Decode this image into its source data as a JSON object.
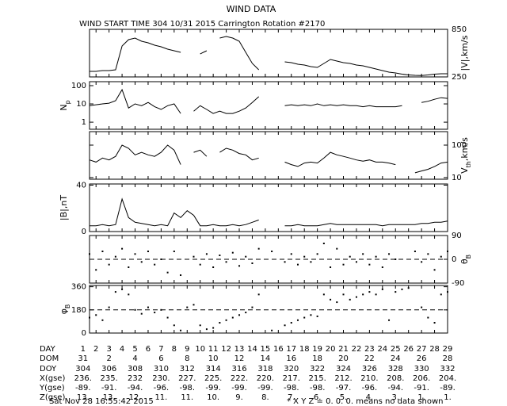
{
  "title": "WIND DATA",
  "chart_data": [
    {
      "type": "line",
      "title": "WIND START TIME 304 10/31 2015 Carrington Rotation #2170",
      "ylabel": [
        {
          "text": "|V|,km/s"
        }
      ],
      "ylabel_side": "right",
      "tick_side": "right",
      "log": false,
      "color": "#000000",
      "xlim": [
        1.5,
        29
      ],
      "ylim": [
        250,
        850
      ],
      "yticks": [
        250,
        850
      ],
      "x": [
        1.5,
        2,
        2.5,
        3,
        3.5,
        4,
        4.5,
        5,
        5.5,
        6,
        6.5,
        7,
        7.5,
        8,
        8.5,
        9,
        9.5,
        10,
        10.5,
        11,
        11.5,
        12,
        12.5,
        13,
        13.5,
        14,
        14.5,
        15,
        15.5,
        16,
        16.5,
        17,
        17.5,
        18,
        18.5,
        19,
        19.5,
        20,
        20.5,
        21,
        21.5,
        22,
        22.5,
        23,
        23.5,
        24,
        24.5,
        25,
        25.5,
        26,
        26.5,
        27,
        27.5,
        28,
        28.5,
        29
      ],
      "values": [
        320,
        320,
        330,
        330,
        340,
        640,
        720,
        740,
        700,
        680,
        650,
        630,
        600,
        580,
        560,
        null,
        null,
        540,
        580,
        null,
        740,
        760,
        740,
        700,
        560,
        420,
        340,
        null,
        380,
        null,
        440,
        430,
        410,
        400,
        380,
        370,
        420,
        470,
        450,
        430,
        420,
        400,
        390,
        370,
        350,
        330,
        310,
        300,
        285,
        275,
        270,
        268,
        275,
        285,
        290,
        290
      ]
    },
    {
      "type": "line",
      "ylabel": [
        {
          "text": "N"
        },
        {
          "text": "p",
          "sub": true
        }
      ],
      "ylabel_side": "left",
      "tick_side": "left",
      "log": true,
      "color": "#000000",
      "xlim": [
        1.5,
        29
      ],
      "ylim": [
        0.41,
        165
      ],
      "yticks": [
        1,
        10,
        100
      ],
      "x": [
        1.5,
        2,
        2.5,
        3,
        3.5,
        4,
        4.5,
        5,
        5.5,
        6,
        6.5,
        7,
        7.5,
        8,
        8.5,
        9,
        9.5,
        10,
        10.5,
        11,
        11.5,
        12,
        12.5,
        13,
        13.5,
        14,
        14.5,
        15,
        15.5,
        16,
        16.5,
        17,
        17.5,
        18,
        18.5,
        19,
        19.5,
        20,
        20.5,
        21,
        21.5,
        22,
        22.5,
        23,
        23.5,
        24,
        24.5,
        25,
        25.5,
        26,
        26.5,
        27,
        27.5,
        28,
        28.5,
        29
      ],
      "values": [
        8,
        9,
        10,
        11,
        15,
        60,
        6,
        10,
        8,
        12,
        7,
        5,
        8,
        10,
        3,
        null,
        4,
        8,
        5,
        3,
        4,
        3,
        3,
        4,
        6,
        12,
        25,
        null,
        6,
        null,
        8,
        9,
        8,
        9,
        8,
        10,
        8,
        9,
        8,
        9,
        8,
        8,
        7,
        8,
        7,
        7,
        7,
        7,
        8,
        null,
        null,
        12,
        14,
        18,
        22,
        20
      ]
    },
    {
      "type": "line",
      "ylabel": [
        {
          "text": "V"
        },
        {
          "text": "th",
          "sub": true
        },
        {
          "text": ",km/s"
        }
      ],
      "ylabel_side": "right",
      "tick_side": "right",
      "log": true,
      "color": "#000000",
      "xlim": [
        1.5,
        29
      ],
      "ylim": [
        8.9,
        260
      ],
      "yticks": [
        10,
        100
      ],
      "x": [
        1.5,
        2,
        2.5,
        3,
        3.5,
        4,
        4.5,
        5,
        5.5,
        6,
        6.5,
        7,
        7.5,
        8,
        8.5,
        9,
        9.5,
        10,
        10.5,
        11,
        11.5,
        12,
        12.5,
        13,
        13.5,
        14,
        14.5,
        15,
        15.5,
        16,
        16.5,
        17,
        17.5,
        18,
        18.5,
        19,
        19.5,
        20,
        20.5,
        21,
        21.5,
        22,
        22.5,
        23,
        23.5,
        24,
        24.5,
        25,
        25.5,
        26,
        26.5,
        27,
        27.5,
        28,
        28.5,
        29
      ],
      "values": [
        35,
        30,
        40,
        35,
        45,
        100,
        80,
        50,
        60,
        50,
        45,
        60,
        100,
        70,
        25,
        null,
        60,
        70,
        45,
        null,
        60,
        80,
        70,
        55,
        50,
        35,
        40,
        null,
        50,
        null,
        30,
        25,
        22,
        28,
        30,
        28,
        40,
        60,
        50,
        45,
        40,
        35,
        32,
        35,
        30,
        30,
        28,
        25,
        null,
        null,
        14,
        16,
        18,
        22,
        28,
        30
      ]
    },
    {
      "type": "line",
      "ylabel": [
        {
          "text": "|B|,nT"
        }
      ],
      "ylabel_side": "left",
      "tick_side": "left",
      "log": false,
      "color": "#000000",
      "xlim": [
        1.5,
        29
      ],
      "ylim": [
        0,
        41
      ],
      "yticks": [
        0,
        40
      ],
      "x": [
        1.5,
        2,
        2.5,
        3,
        3.5,
        4,
        4.5,
        5,
        5.5,
        6,
        6.5,
        7,
        7.5,
        8,
        8.5,
        9,
        9.5,
        10,
        10.5,
        11,
        11.5,
        12,
        12.5,
        13,
        13.5,
        14,
        14.5,
        15,
        15.5,
        16,
        16.5,
        17,
        17.5,
        18,
        18.5,
        19,
        19.5,
        20,
        20.5,
        21,
        21.5,
        22,
        22.5,
        23,
        23.5,
        24,
        24.5,
        25,
        25.5,
        26,
        26.5,
        27,
        27.5,
        28,
        28.5,
        29
      ],
      "values": [
        5,
        5,
        6,
        5,
        6,
        28,
        12,
        8,
        7,
        6,
        5,
        6,
        5,
        16,
        12,
        18,
        14,
        5,
        5,
        6,
        5,
        5,
        6,
        5,
        6,
        8,
        10,
        null,
        5,
        null,
        5,
        5,
        6,
        5,
        5,
        5,
        6,
        7,
        6,
        6,
        6,
        6,
        6,
        6,
        6,
        5,
        6,
        6,
        6,
        6,
        6,
        7,
        7,
        8,
        8,
        9
      ]
    },
    {
      "type": "scatter",
      "ylabel": [
        {
          "text": "θ"
        },
        {
          "text": "B",
          "sub": true
        }
      ],
      "ylabel_side": "right",
      "tick_side": "right",
      "log": false,
      "color": "#000000",
      "xlim": [
        1.5,
        29
      ],
      "ylim": [
        -90,
        90
      ],
      "yticks": [
        -90,
        0,
        90
      ],
      "hline": 0,
      "x": [
        1.5,
        2,
        2.5,
        3,
        3.5,
        4,
        4.5,
        5,
        5.5,
        6,
        6.5,
        7,
        7.5,
        8,
        8.5,
        9,
        9.5,
        10,
        10.5,
        11,
        11.5,
        12,
        12.5,
        13,
        13.5,
        14,
        14.5,
        15,
        15.5,
        16,
        16.5,
        17,
        17.5,
        18,
        18.5,
        19,
        19.5,
        20,
        20.5,
        21,
        21.5,
        22,
        22.5,
        23,
        23.5,
        24,
        24.5,
        25,
        25.5,
        26,
        26.5,
        27,
        27.5,
        28,
        28.5,
        29
      ],
      "values": [
        20,
        -40,
        30,
        -20,
        10,
        40,
        -30,
        20,
        -10,
        30,
        -20,
        0,
        -50,
        30,
        -60,
        null,
        10,
        -20,
        20,
        -30,
        15,
        -10,
        25,
        -25,
        10,
        -15,
        40,
        null,
        30,
        null,
        -10,
        20,
        -20,
        10,
        -10,
        20,
        60,
        -30,
        40,
        -20,
        10,
        -10,
        20,
        -20,
        10,
        -30,
        20,
        0,
        null,
        null,
        30,
        -10,
        20,
        -40,
        10,
        30
      ]
    },
    {
      "type": "scatter",
      "ylabel": [
        {
          "text": "φ"
        },
        {
          "text": "B",
          "sub": true
        }
      ],
      "ylabel_side": "left",
      "tick_side": "left",
      "log": false,
      "color": "#000000",
      "xlim": [
        1.5,
        29
      ],
      "ylim": [
        0,
        370
      ],
      "yticks": [
        0,
        180,
        360
      ],
      "hline": 180,
      "x": [
        1.5,
        2,
        2.5,
        3,
        3.5,
        4,
        4.5,
        5,
        5.5,
        6,
        6.5,
        7,
        7.5,
        8,
        8.5,
        9,
        9.5,
        10,
        10.5,
        11,
        11.5,
        12,
        12.5,
        13,
        13.5,
        14,
        14.5,
        15,
        15.5,
        16,
        16.5,
        17,
        17.5,
        18,
        18.5,
        19,
        19.5,
        20,
        20.5,
        21,
        21.5,
        22,
        22.5,
        23,
        23.5,
        24,
        24.5,
        25,
        25.5,
        26,
        26.5,
        27,
        27.5,
        28,
        28.5,
        29
      ],
      "values": [
        120,
        140,
        100,
        200,
        320,
        340,
        300,
        180,
        150,
        200,
        160,
        180,
        120,
        60,
        20,
        200,
        220,
        60,
        30,
        40,
        80,
        100,
        120,
        140,
        160,
        200,
        300,
        null,
        20,
        null,
        60,
        80,
        100,
        120,
        140,
        130,
        300,
        260,
        240,
        300,
        260,
        280,
        300,
        320,
        300,
        340,
        100,
        320,
        340,
        350,
        null,
        200,
        120,
        80,
        300,
        320
      ]
    }
  ],
  "axis_table": {
    "rows": [
      {
        "name": "DAY",
        "values": [
          1,
          2,
          3,
          4,
          5,
          6,
          7,
          8,
          9,
          10,
          11,
          12,
          13,
          14,
          15,
          16,
          17,
          18,
          19,
          20,
          21,
          22,
          23,
          24,
          25,
          26,
          27,
          28,
          29
        ]
      },
      {
        "name": "DOM",
        "values": [
          "31",
          "2",
          "4",
          "6",
          "8",
          "10",
          "12",
          "14",
          "16",
          "18",
          "20",
          "22",
          "24",
          "26",
          "28"
        ]
      },
      {
        "name": "DOY",
        "values": [
          "304",
          "306",
          "308",
          "310",
          "312",
          "314",
          "316",
          "318",
          "320",
          "322",
          "324",
          "326",
          "328",
          "330",
          "332"
        ]
      },
      {
        "name": "X(gse)",
        "values": [
          "236.",
          "235.",
          "232",
          "230.",
          "227.",
          "225.",
          "222.",
          "220.",
          "217.",
          "215.",
          "212.",
          "210.",
          "208.",
          "206.",
          "204."
        ]
      },
      {
        "name": "Y(gse)",
        "values": [
          "-89.",
          "-91.",
          "-94.",
          "-96.",
          "-98.",
          "-99.",
          "-99.",
          "-99.",
          "-98.",
          "-98.",
          "-97.",
          "-96.",
          "-94.",
          "-91.",
          "-89."
        ]
      },
      {
        "name": "Z(gse)",
        "values": [
          "13.",
          "13.",
          "12.",
          "11.",
          "11.",
          "10.",
          "9.",
          "8.",
          "7.",
          "6.",
          "5.",
          "4.",
          "3.",
          "1.",
          "1."
        ]
      }
    ]
  },
  "footer": {
    "timestamp": "Sat Nov 28 16:55:42 2015",
    "note": "* X Y Z = 0. 0. 0. means no data shown"
  }
}
